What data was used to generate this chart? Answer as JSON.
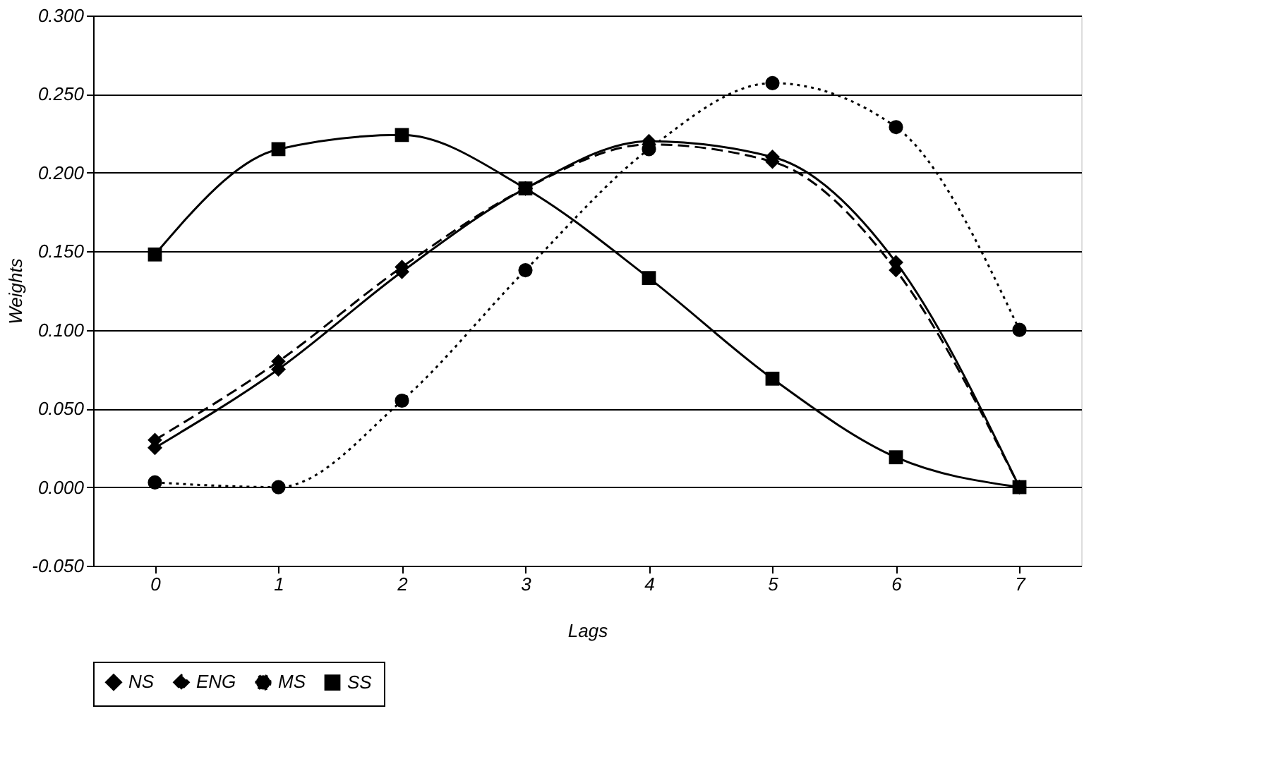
{
  "chart_data": {
    "type": "line",
    "xlabel": "Lags",
    "ylabel": "Weights",
    "categories": [
      "0",
      "1",
      "2",
      "3",
      "4",
      "5",
      "6",
      "7"
    ],
    "series": [
      {
        "name": "NS",
        "color": "#000000",
        "line_style": "solid",
        "marker": "diamond",
        "values": [
          0.025,
          0.075,
          0.137,
          0.19,
          0.22,
          0.21,
          0.143,
          0.0
        ]
      },
      {
        "name": "ENG",
        "color": "#000000",
        "line_style": "dashed",
        "marker": "diamond",
        "values": [
          0.03,
          0.08,
          0.14,
          0.19,
          0.218,
          0.207,
          0.138,
          0.0
        ]
      },
      {
        "name": "MS",
        "color": "#000000",
        "line_style": "dotted",
        "marker": "circle",
        "values": [
          0.003,
          0.0,
          0.055,
          0.138,
          0.215,
          0.257,
          0.229,
          0.1
        ]
      },
      {
        "name": "SS",
        "color": "#000000",
        "line_style": "solid",
        "marker": "square",
        "values": [
          0.148,
          0.215,
          0.224,
          0.19,
          0.133,
          0.069,
          0.019,
          0.0
        ]
      }
    ],
    "ylim": [
      -0.05,
      0.3
    ],
    "yticks": [
      {
        "value": -0.05,
        "label": "-0.050"
      },
      {
        "value": 0,
        "label": "0.000"
      },
      {
        "value": 0.05,
        "label": "0.050"
      },
      {
        "value": 0.1,
        "label": "0.100"
      },
      {
        "value": 0.15,
        "label": "0.150"
      },
      {
        "value": 0.2,
        "label": "0.200"
      },
      {
        "value": 0.25,
        "label": "0.250"
      },
      {
        "value": 0.3,
        "label": "0.300"
      }
    ],
    "grid": "y",
    "legend": "bottom"
  }
}
